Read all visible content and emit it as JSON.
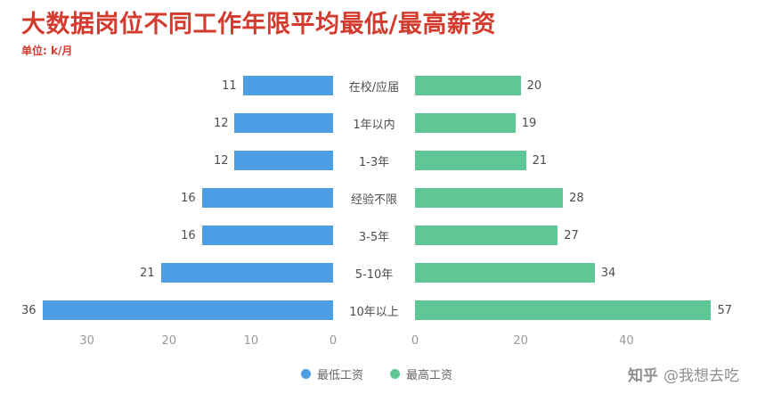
{
  "header": {
    "title": "大数据岗位不同工作年限平均最低/最高薪资",
    "subtitle": "单位: k/月"
  },
  "chart_data": {
    "type": "bar",
    "orientation": "horizontal-diverging",
    "title": "大数据岗位不同工作年限平均最低/最高薪资",
    "unit": "k/月",
    "categories": [
      "在校/应届",
      "1年以内",
      "1-3年",
      "经验不限",
      "3-5年",
      "5-10年",
      "10年以上"
    ],
    "series": [
      {
        "name": "最低工资",
        "side": "left",
        "color": "#4d9de4",
        "values": [
          11,
          12,
          12,
          16,
          16,
          21,
          36
        ],
        "axis_max": 38,
        "ticks": [
          30,
          20,
          10,
          0
        ]
      },
      {
        "name": "最高工资",
        "side": "right",
        "color": "#5ec795",
        "values": [
          20,
          19,
          21,
          28,
          27,
          34,
          57
        ],
        "axis_max": 60,
        "ticks": [
          0,
          20,
          40
        ]
      }
    ],
    "legend": [
      "最低工资",
      "最高工资"
    ],
    "legend_position": "bottom",
    "grid": false
  },
  "watermark": {
    "brand": "知乎",
    "user": "@我想去吃"
  }
}
